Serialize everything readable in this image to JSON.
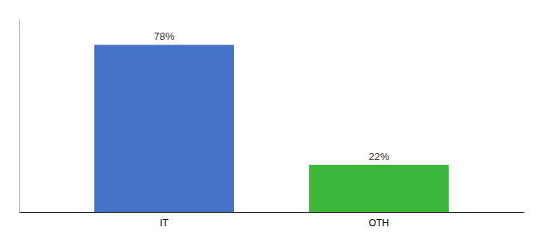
{
  "chart_data": {
    "type": "bar",
    "categories": [
      "IT",
      "OTH"
    ],
    "values": [
      78,
      22
    ],
    "value_labels": [
      "78%",
      "22%"
    ],
    "colors": [
      "#4472C4",
      "#3CB93C"
    ],
    "ylim": [
      0,
      90
    ],
    "data_labels": true,
    "tick_labels": "x"
  }
}
